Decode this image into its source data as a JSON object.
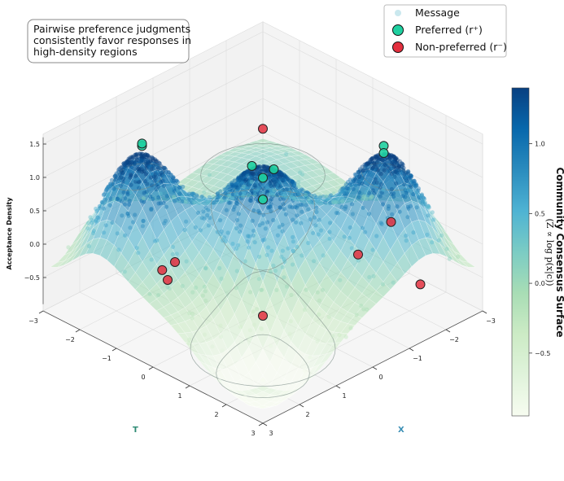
{
  "chart_data": {
    "type": "surface3d",
    "surface_label": "Community Consensus Surface",
    "surface_sublabel": "(Z ∝ log p(x|c))",
    "zlabel": "Acceptance Density",
    "xlabel": "X",
    "ylabel": "T",
    "xlim": [
      -3,
      3
    ],
    "ylim": [
      -3,
      3
    ],
    "zlim": [
      -1,
      1.6
    ],
    "x_ticks": [
      -3,
      -2,
      -1,
      0,
      1,
      2,
      3
    ],
    "y_ticks": [
      -3,
      -2,
      -1,
      0,
      1,
      2,
      3
    ],
    "z_ticks": [
      -0.5,
      0.0,
      0.5,
      1.0,
      1.5
    ],
    "z_tick_labels": [
      "−0.5",
      "0.0",
      "0.5",
      "1.0",
      "1.5"
    ],
    "colorbar": {
      "range": [
        -0.95,
        1.4
      ],
      "ticks": [
        -0.5,
        0.0,
        0.5,
        1.0
      ],
      "tick_labels": [
        "−0.5",
        "0.0",
        "0.5",
        "1.0"
      ],
      "colormap": [
        "#f7fcf0",
        "#e0f3db",
        "#ccebc5",
        "#a8ddb5",
        "#7bccc4",
        "#4eb3d3",
        "#2b8cbe",
        "#0868ac",
        "#084081"
      ]
    },
    "annotation_lines": [
      "Pairwise preference judgments",
      "consistently favor responses in",
      "high-density regions"
    ],
    "legend": [
      {
        "label": "Message",
        "color": "#9ed6e0"
      },
      {
        "label": "Preferred (r⁺)",
        "color": "#1fd0a0"
      },
      {
        "label": "Non-preferred (r⁻)",
        "color": "#e3303f"
      }
    ],
    "preferred_points": [
      {
        "x": -1.6,
        "y": 1.7,
        "z": 1.5
      },
      {
        "x": -1.5,
        "y": 1.8,
        "z": 1.45
      },
      {
        "x": 1.7,
        "y": -1.6,
        "z": 1.5
      },
      {
        "x": 1.6,
        "y": -1.7,
        "z": 1.48
      },
      {
        "x": 0.2,
        "y": -0.1,
        "z": 1.2
      },
      {
        "x": -0.1,
        "y": 0.2,
        "z": 1.15
      },
      {
        "x": 0.1,
        "y": 0.1,
        "z": 1.05
      },
      {
        "x": 0.5,
        "y": 0.5,
        "z": 0.95
      }
    ],
    "nonpreferred_points": [
      {
        "x": -1.3,
        "y": -1.3,
        "z": 1.0
      },
      {
        "x": -2.7,
        "y": 0.8,
        "z": -0.2
      },
      {
        "x": -1.2,
        "y": 1.4,
        "z": -0.1
      },
      {
        "x": -1.7,
        "y": 2.6,
        "z": -0.35
      },
      {
        "x": 1.2,
        "y": 1.2,
        "z": -0.4
      },
      {
        "x": 1.5,
        "y": -0.9,
        "z": -0.1
      },
      {
        "x": 1.9,
        "y": -0.7,
        "z": -0.2
      },
      {
        "x": 1.8,
        "y": -0.95,
        "z": -0.15
      }
    ]
  }
}
